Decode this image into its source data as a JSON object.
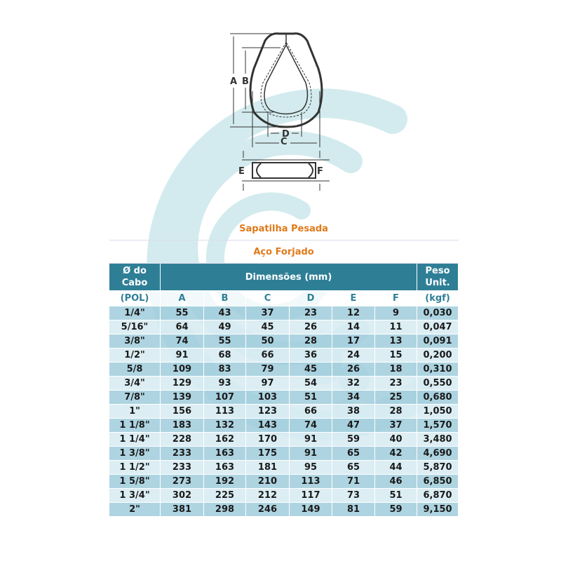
{
  "diagram": {
    "labels": [
      "A",
      "B",
      "C",
      "D",
      "E",
      "F"
    ]
  },
  "table": {
    "title": "Sapatilha Pesada",
    "subtitle": "Aço Forjado",
    "header": {
      "col1": "Ø do Cabo",
      "dims": "Dimensões (mm)",
      "weight": "Peso Unit."
    },
    "subheader": [
      "(POL)",
      "A",
      "B",
      "C",
      "D",
      "E",
      "F",
      "(kgf)"
    ],
    "rows": [
      [
        "1/4\"",
        "55",
        "43",
        "37",
        "23",
        "12",
        "9",
        "0,030"
      ],
      [
        "5/16\"",
        "64",
        "49",
        "45",
        "26",
        "14",
        "11",
        "0,047"
      ],
      [
        "3/8\"",
        "74",
        "55",
        "50",
        "28",
        "17",
        "13",
        "0,091"
      ],
      [
        "1/2\"",
        "91",
        "68",
        "66",
        "36",
        "24",
        "15",
        "0,200"
      ],
      [
        "5/8",
        "109",
        "83",
        "79",
        "45",
        "26",
        "18",
        "0,310"
      ],
      [
        "3/4\"",
        "129",
        "93",
        "97",
        "54",
        "32",
        "23",
        "0,550"
      ],
      [
        "7/8\"",
        "139",
        "107",
        "103",
        "51",
        "34",
        "25",
        "0,680"
      ],
      [
        "1\"",
        "156",
        "113",
        "123",
        "66",
        "38",
        "28",
        "1,050"
      ],
      [
        "1 1/8\"",
        "183",
        "132",
        "143",
        "74",
        "47",
        "37",
        "1,570"
      ],
      [
        "1 1/4\"",
        "228",
        "162",
        "170",
        "91",
        "59",
        "40",
        "3,480"
      ],
      [
        "1 3/8\"",
        "233",
        "163",
        "175",
        "91",
        "65",
        "42",
        "4,690"
      ],
      [
        "1 1/2\"",
        "233",
        "163",
        "181",
        "95",
        "65",
        "44",
        "5,870"
      ],
      [
        "1 5/8\"",
        "273",
        "192",
        "210",
        "113",
        "71",
        "46",
        "6,850"
      ],
      [
        "1 3/4\"",
        "302",
        "225",
        "212",
        "117",
        "73",
        "51",
        "6,870"
      ],
      [
        "2\"",
        "381",
        "298",
        "246",
        "149",
        "81",
        "59",
        "9,150"
      ]
    ]
  },
  "colors": {
    "header": "#2e7f96",
    "title": "#e07a1a",
    "row_dark": "#a0cddc",
    "row_light": "#d6ebf2"
  }
}
